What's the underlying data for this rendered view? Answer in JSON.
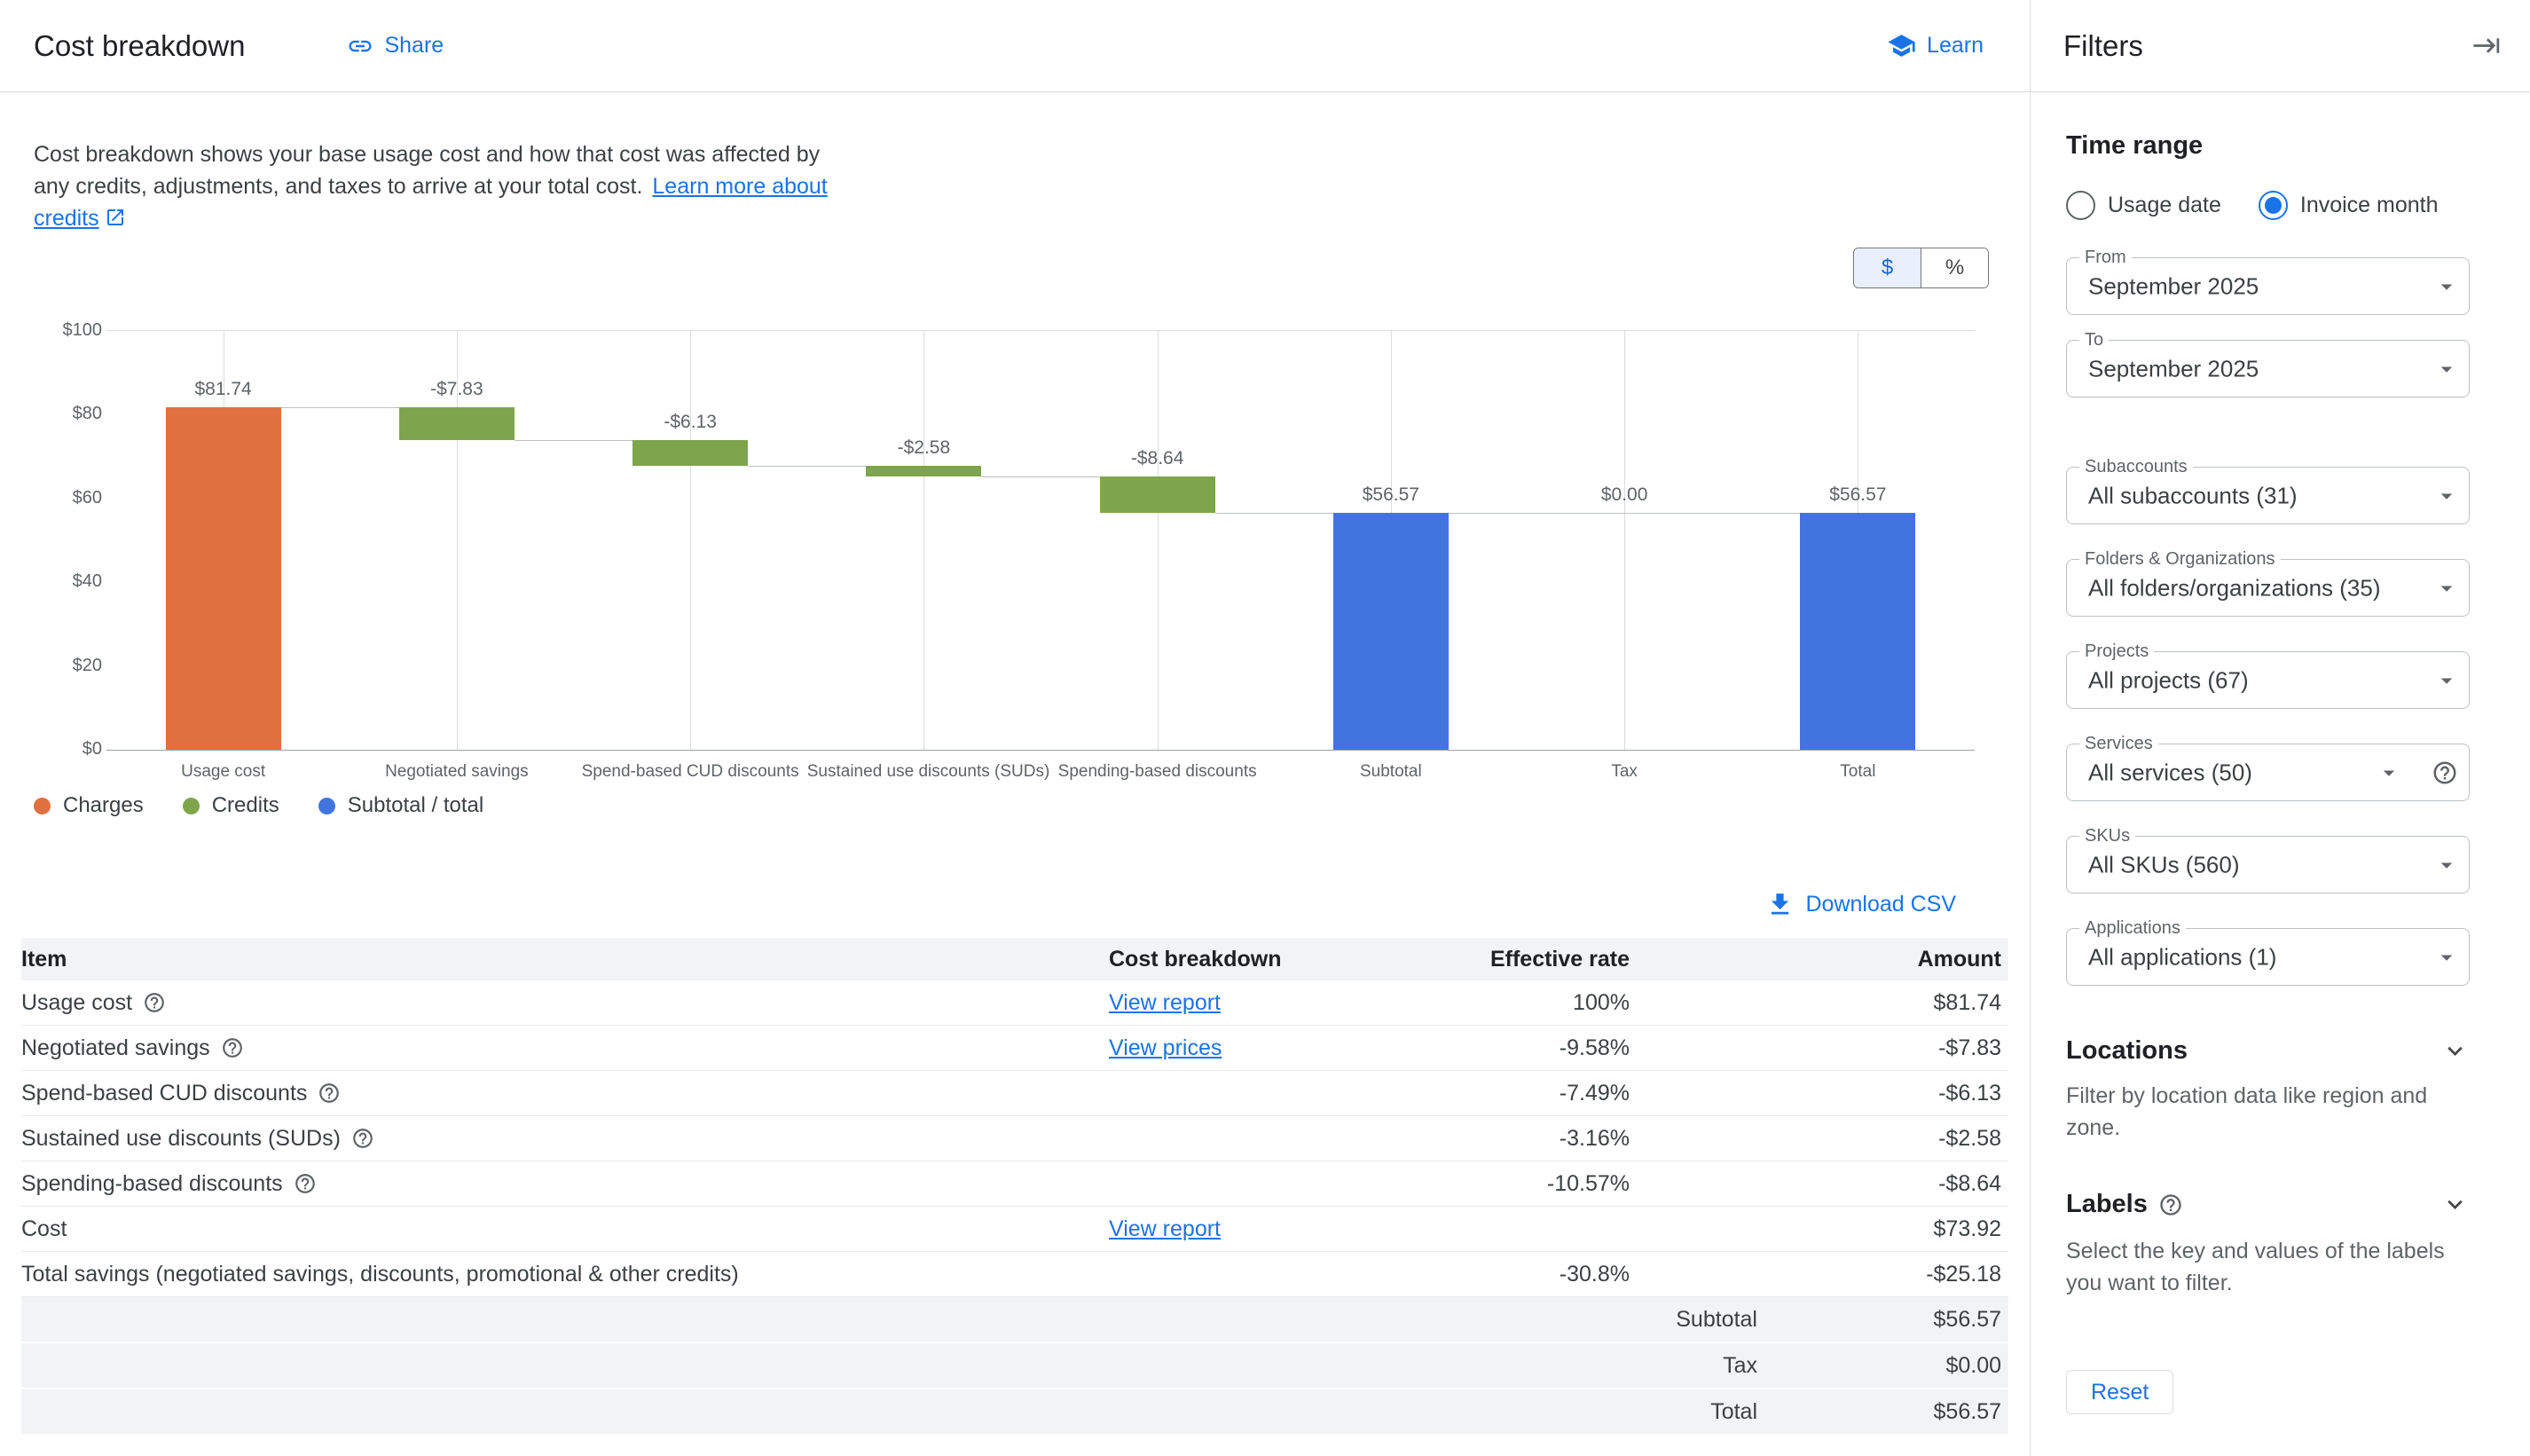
{
  "header": {
    "title": "Cost breakdown",
    "share_label": "Share",
    "learn_label": "Learn"
  },
  "description": {
    "text": "Cost breakdown shows your base usage cost and how that cost was affected by any credits, adjustments, and taxes to arrive at your total cost.",
    "link_text": "Learn more about credits"
  },
  "toggle": {
    "dollar_label": "$",
    "percent_label": "%",
    "selected": "$"
  },
  "chart_data": {
    "type": "bar",
    "subtype": "waterfall",
    "title": "",
    "categories": [
      "Usage cost",
      "Negotiated savings",
      "Spend-based CUD discounts",
      "Sustained use discounts (SUDs)",
      "Spending-based discounts",
      "Subtotal",
      "Tax",
      "Total"
    ],
    "values": [
      81.74,
      -7.83,
      -6.13,
      -2.58,
      -8.64,
      56.57,
      0,
      56.57
    ],
    "bar_labels": [
      "$81.74",
      "-$7.83",
      "-$6.13",
      "-$2.58",
      "-$8.64",
      "$56.57",
      "$0.00",
      "$56.57"
    ],
    "bar_types": [
      "charge",
      "credit",
      "credit",
      "credit",
      "credit",
      "subtotal",
      "tax",
      "subtotal"
    ],
    "y_ticks": [
      "$100",
      "$80",
      "$60",
      "$40",
      "$20",
      "$0"
    ],
    "ylim": [
      0,
      100
    ],
    "grid": "vertical-category-lines",
    "legend_position": "bottom-left",
    "colors": {
      "charge": "#e0703f",
      "credit": "#7ea54c",
      "subtotal": "#4274e0",
      "tax": "#4274e0"
    },
    "legend": [
      {
        "label": "Charges",
        "color": "#e0703f"
      },
      {
        "label": "Credits",
        "color": "#7ea54c"
      },
      {
        "label": "Subtotal / total",
        "color": "#4274e0"
      }
    ]
  },
  "download_label": "Download CSV",
  "table": {
    "headers": [
      "Item",
      "Cost breakdown",
      "Effective rate",
      "Amount"
    ],
    "rows": [
      {
        "item": "Usage cost",
        "link": "View report",
        "rate": "100%",
        "amount": "$81.74"
      },
      {
        "item": "Negotiated savings",
        "link": "View prices",
        "rate": "-9.58%",
        "amount": "-$7.83"
      },
      {
        "item": "Spend-based CUD discounts",
        "link": "",
        "rate": "-7.49%",
        "amount": "-$6.13"
      },
      {
        "item": "Sustained use discounts (SUDs)",
        "link": "",
        "rate": "-3.16%",
        "amount": "-$2.58"
      },
      {
        "item": "Spending-based discounts",
        "link": "",
        "rate": "-10.57%",
        "amount": "-$8.64"
      },
      {
        "item": "Cost",
        "link": "View report",
        "rate": "",
        "amount": "$73.92"
      },
      {
        "item": "Total savings (negotiated savings, discounts, promotional & other credits)",
        "link": "",
        "rate": "-30.8%",
        "amount": "-$25.18"
      }
    ],
    "summary_rows": [
      {
        "label": "Subtotal",
        "amount": "$56.57"
      },
      {
        "label": "Tax",
        "amount": "$0.00"
      },
      {
        "label": "Total",
        "amount": "$56.57"
      }
    ]
  },
  "filters": {
    "title": "Filters",
    "time_range_label": "Time range",
    "radios": [
      {
        "label": "Usage date",
        "selected": false
      },
      {
        "label": "Invoice month",
        "selected": true
      }
    ],
    "fields": [
      {
        "label": "From",
        "value": "September 2025"
      },
      {
        "label": "To",
        "value": "September 2025"
      },
      {
        "label": "Subaccounts",
        "value": "All subaccounts (31)"
      },
      {
        "label": "Folders & Organizations",
        "value": "All folders/organizations (35)"
      },
      {
        "label": "Projects",
        "value": "All projects (67)"
      },
      {
        "label": "Services",
        "value": "All services (50)"
      },
      {
        "label": "SKUs",
        "value": "All SKUs (560)"
      },
      {
        "label": "Applications",
        "value": "All applications (1)"
      }
    ],
    "locations": {
      "title": "Locations",
      "description": "Filter by location data like region and zone."
    },
    "labels": {
      "title": "Labels",
      "description": "Select the key and values of the labels you want to filter."
    },
    "reset_label": "Reset"
  }
}
